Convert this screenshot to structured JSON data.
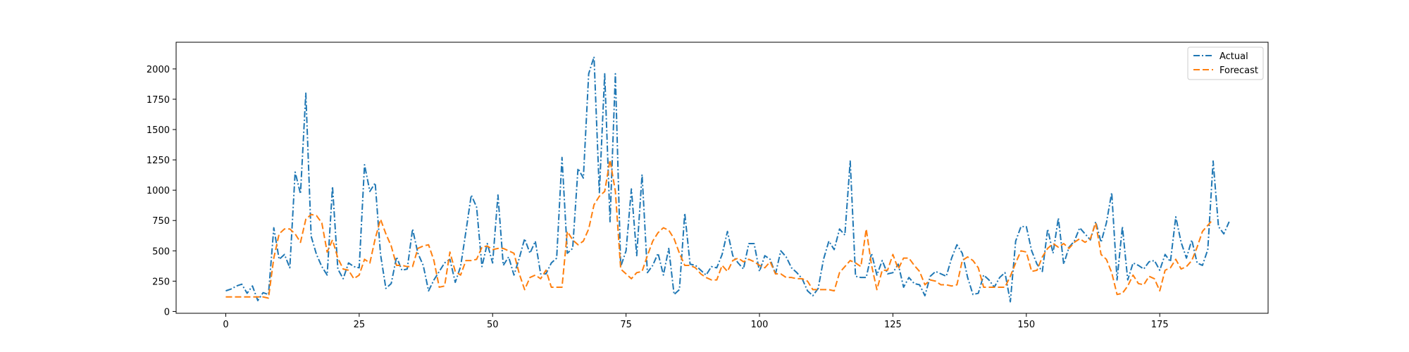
{
  "chart_data": {
    "type": "line",
    "title": "",
    "xlabel": "",
    "ylabel": "",
    "xlim": [
      -9.3,
      195.3
    ],
    "ylim": [
      -15,
      2220
    ],
    "x_ticks": [
      0,
      25,
      50,
      75,
      100,
      125,
      150,
      175
    ],
    "y_ticks": [
      0,
      250,
      500,
      750,
      1000,
      1250,
      1500,
      1750,
      2000
    ],
    "legend_position": "top-right",
    "grid": false,
    "series": [
      {
        "name": "Actual",
        "color": "#1f77b4",
        "style": "dashdot",
        "values": [
          170,
          185,
          210,
          225,
          150,
          210,
          90,
          155,
          140,
          690,
          430,
          470,
          360,
          1150,
          970,
          1800,
          620,
          470,
          370,
          300,
          1030,
          350,
          270,
          400,
          370,
          360,
          1210,
          990,
          1060,
          470,
          190,
          230,
          450,
          340,
          350,
          680,
          480,
          380,
          170,
          260,
          330,
          400,
          430,
          240,
          370,
          660,
          960,
          860,
          370,
          560,
          400,
          960,
          380,
          450,
          300,
          440,
          600,
          480,
          580,
          310,
          310,
          400,
          440,
          1270,
          480,
          520,
          1180,
          1100,
          1960,
          2100,
          980,
          1960,
          740,
          1960,
          370,
          500,
          1010,
          460,
          1130,
          320,
          380,
          480,
          300,
          520,
          140,
          180,
          810,
          390,
          380,
          340,
          300,
          370,
          360,
          470,
          660,
          460,
          400,
          350,
          560,
          560,
          330,
          460,
          430,
          310,
          500,
          450,
          360,
          320,
          270,
          170,
          130,
          190,
          430,
          580,
          510,
          680,
          630,
          1240,
          290,
          280,
          280,
          480,
          300,
          420,
          310,
          320,
          390,
          200,
          280,
          230,
          220,
          130,
          290,
          330,
          310,
          290,
          440,
          550,
          480,
          280,
          140,
          150,
          300,
          260,
          200,
          280,
          320,
          80,
          580,
          700,
          700,
          500,
          390,
          330,
          680,
          480,
          770,
          390,
          530,
          580,
          690,
          640,
          590,
          740,
          570,
          730,
          980,
          260,
          700,
          260,
          400,
          380,
          350,
          410,
          420,
          340,
          470,
          410,
          780,
          570,
          440,
          590,
          400,
          380,
          510,
          1240,
          700,
          640,
          740
        ]
      },
      {
        "name": "Forecast",
        "color": "#ff7f0e",
        "style": "dashed",
        "values": [
          120,
          120,
          120,
          120,
          120,
          120,
          120,
          120,
          110,
          440,
          640,
          680,
          680,
          640,
          570,
          760,
          800,
          790,
          730,
          490,
          590,
          440,
          350,
          340,
          270,
          300,
          430,
          400,
          600,
          760,
          640,
          540,
          380,
          380,
          370,
          370,
          520,
          540,
          550,
          420,
          200,
          210,
          490,
          330,
          300,
          420,
          420,
          430,
          530,
          540,
          510,
          520,
          520,
          500,
          480,
          310,
          180,
          280,
          300,
          270,
          340,
          200,
          200,
          200,
          660,
          590,
          550,
          580,
          680,
          880,
          950,
          990,
          1250,
          990,
          350,
          310,
          270,
          320,
          330,
          460,
          580,
          650,
          690,
          670,
          600,
          480,
          380,
          380,
          360,
          310,
          280,
          260,
          260,
          380,
          330,
          420,
          440,
          410,
          430,
          410,
          380,
          360,
          410,
          310,
          310,
          280,
          280,
          270,
          270,
          250,
          180,
          180,
          180,
          180,
          170,
          320,
          370,
          420,
          400,
          370,
          680,
          380,
          180,
          340,
          340,
          470,
          350,
          440,
          440,
          380,
          330,
          220,
          260,
          250,
          220,
          220,
          210,
          220,
          420,
          450,
          420,
          360,
          200,
          200,
          200,
          200,
          200,
          290,
          400,
          500,
          490,
          330,
          340,
          450,
          520,
          560,
          530,
          560,
          520,
          570,
          600,
          570,
          600,
          730,
          470,
          430,
          320,
          140,
          150,
          210,
          300,
          230,
          220,
          290,
          270,
          170,
          340,
          360,
          430,
          350,
          370,
          420,
          530,
          660,
          710,
          760
        ]
      }
    ]
  }
}
